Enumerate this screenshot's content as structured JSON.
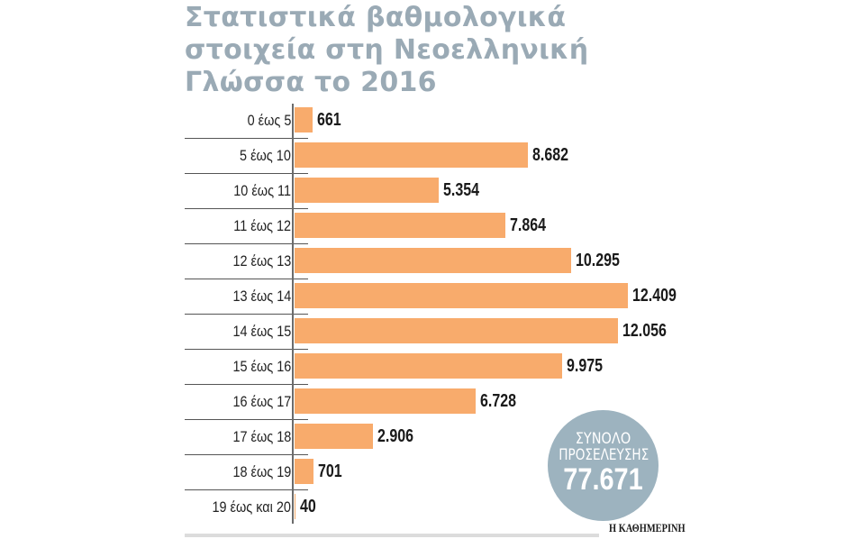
{
  "title_lines": [
    "Στατιστικά βαθμολογικά",
    "στοιχεία στη Νεοελληνική",
    "Γλώσσα το 2016"
  ],
  "chart_data": {
    "type": "bar",
    "orientation": "horizontal",
    "title": "Στατιστικά βαθμολογικά στοιχεία στη Νεοελληνική Γλώσσα το 2016",
    "xlabel": "",
    "ylabel": "",
    "categories": [
      "0 έως 5",
      "5 έως 10",
      "10 έως 11",
      "11 έως 12",
      "12 έως 13",
      "13 έως 14",
      "14 έως 15",
      "15 έως 16",
      "16 έως 17",
      "17 έως 18",
      "18 έως 19",
      "19 έως και 20"
    ],
    "values": [
      661,
      8682,
      5354,
      7864,
      10295,
      12409,
      12056,
      9975,
      6728,
      2906,
      701,
      40
    ],
    "value_labels": [
      "661",
      "8.682",
      "5.354",
      "7.864",
      "10.295",
      "12.409",
      "12.056",
      "9.975",
      "6.728",
      "2.906",
      "701",
      "40"
    ],
    "bar_color": "#f8ab6c",
    "grid": false,
    "legend": null,
    "annotations": [
      "ΣΥΝΟΛΟ ΠΡΟΣΕΛΕΥΣΗΣ 77.671"
    ]
  },
  "total": {
    "line1": "ΣΥΝΟΛΟ",
    "line2": "ΠΡΟΣΕΛΕΥΣΗΣ",
    "value": "77.671"
  },
  "source": "Η ΚΑΘΗΜΕΡΙΝΗ",
  "colors": {
    "title": "#9aaab5",
    "bar": "#f8ab6c",
    "circle": "#9db3bf"
  }
}
